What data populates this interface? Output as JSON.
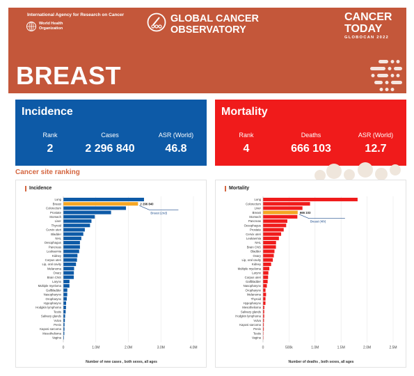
{
  "header": {
    "iarc": "International Agency for Research on Cancer",
    "who": "World Health Organization",
    "gco_line1": "GLOBAL CANCER",
    "gco_line2": "OBSERVATORY",
    "ct_line1": "CANCER",
    "ct_line2": "TODAY",
    "ct_sub": "GLOBOCAN 2022",
    "title": "BREAST"
  },
  "colors": {
    "header": "#c4573a",
    "incidence": "#0d5aa7",
    "mortality": "#f01b1b",
    "highlight": "#f5a623",
    "accent": "#d4653f"
  },
  "incidence_card": {
    "title": "Incidence",
    "rank_label": "Rank",
    "rank": "2",
    "cases_label": "Cases",
    "cases": "2 296 840",
    "asr_label": "ASR (World)",
    "asr": "46.8"
  },
  "mortality_card": {
    "title": "Mortality",
    "rank_label": "Rank",
    "rank": "4",
    "deaths_label": "Deaths",
    "deaths": "666 103",
    "asr_label": "ASR (World)",
    "asr": "12.7"
  },
  "ranking_title": "Cancer site ranking",
  "chart_data": [
    {
      "type": "bar",
      "orientation": "horizontal",
      "title": "Incidence",
      "xlabel": "Number of new cases , both sexes, all ages",
      "xlim": [
        0,
        4000000
      ],
      "xticks": [
        0,
        1000000,
        2000000,
        3000000,
        4000000
      ],
      "xtick_labels": [
        "0",
        "1.0M",
        "2.0M",
        "3.0M",
        "4.0M"
      ],
      "highlight_category": "Breast",
      "highlight_value_label": "2 296 840",
      "annotation": "Breast (2nd)",
      "categories": [
        "Lung",
        "Breast",
        "Colorectum",
        "Prostate",
        "Stomach",
        "Liver",
        "Thyroid",
        "Cervix uteri",
        "Bladder",
        "NHL",
        "Oesophagus",
        "Pancreas",
        "Leukaemia",
        "Kidney",
        "Corpus uteri",
        "Lip, oral cavity",
        "Melanoma",
        "Ovary",
        "Brain CNS",
        "Larynx",
        "Multiple myeloma",
        "Gallbladder",
        "Nasopharynx",
        "Oropharynx",
        "Hypopharynx",
        "Hodgkin lymphoma",
        "Testis",
        "Salivary glands",
        "Vulva",
        "Penis",
        "Kaposi sarcoma",
        "Mesothelioma",
        "Vagina"
      ],
      "values": [
        2480675,
        2296840,
        1926118,
        1467854,
        968350,
        865269,
        821214,
        661021,
        614298,
        553010,
        510716,
        510992,
        486777,
        434419,
        420368,
        389846,
        331722,
        324603,
        321731,
        189191,
        187952,
        122491,
        120416,
        106316,
        86257,
        82409,
        72031,
        55083,
        47336,
        37699,
        35360,
        30618,
        18819
      ]
    },
    {
      "type": "bar",
      "orientation": "horizontal",
      "title": "Mortality",
      "xlabel": "Number of deaths , both sexes, all ages",
      "xlim": [
        0,
        2500000
      ],
      "xticks": [
        0,
        500000,
        1000000,
        1500000,
        2000000,
        2500000
      ],
      "xtick_labels": [
        "0",
        "500k",
        "1.0M",
        "1.5M",
        "2.0M",
        "2.5M"
      ],
      "highlight_category": "Breast",
      "highlight_value_label": "666 103",
      "annotation": "Breast (4th)",
      "categories": [
        "Lung",
        "Colorectum",
        "Liver",
        "Breast",
        "Stomach",
        "Pancreas",
        "Oesophagus",
        "Prostate",
        "Cervix uteri",
        "Leukaemia",
        "NHL",
        "Brain CNS",
        "Bladder",
        "Ovary",
        "Lip, oral cavity",
        "Kidney",
        "Multiple myeloma",
        "Larynx",
        "Corpus uteri",
        "Gallbladder",
        "Nasopharynx",
        "Oropharynx",
        "Melanoma",
        "Thyroid",
        "Hypopharynx",
        "Mesothelioma",
        "Salivary glands",
        "Hodgkin lymphoma",
        "Vulva",
        "Kaposi sarcoma",
        "Penis",
        "Testis",
        "Vagina"
      ],
      "values": [
        1817172,
        903859,
        757948,
        666103,
        659853,
        467409,
        445129,
        397430,
        348189,
        305405,
        250475,
        248305,
        220349,
        206956,
        188438,
        155953,
        121388,
        103359,
        97704,
        89055,
        73482,
        48143,
        58667,
        47485,
        47017,
        25416,
        22933,
        22701,
        18579,
        15494,
        15262,
        9056,
        8266
      ]
    }
  ]
}
